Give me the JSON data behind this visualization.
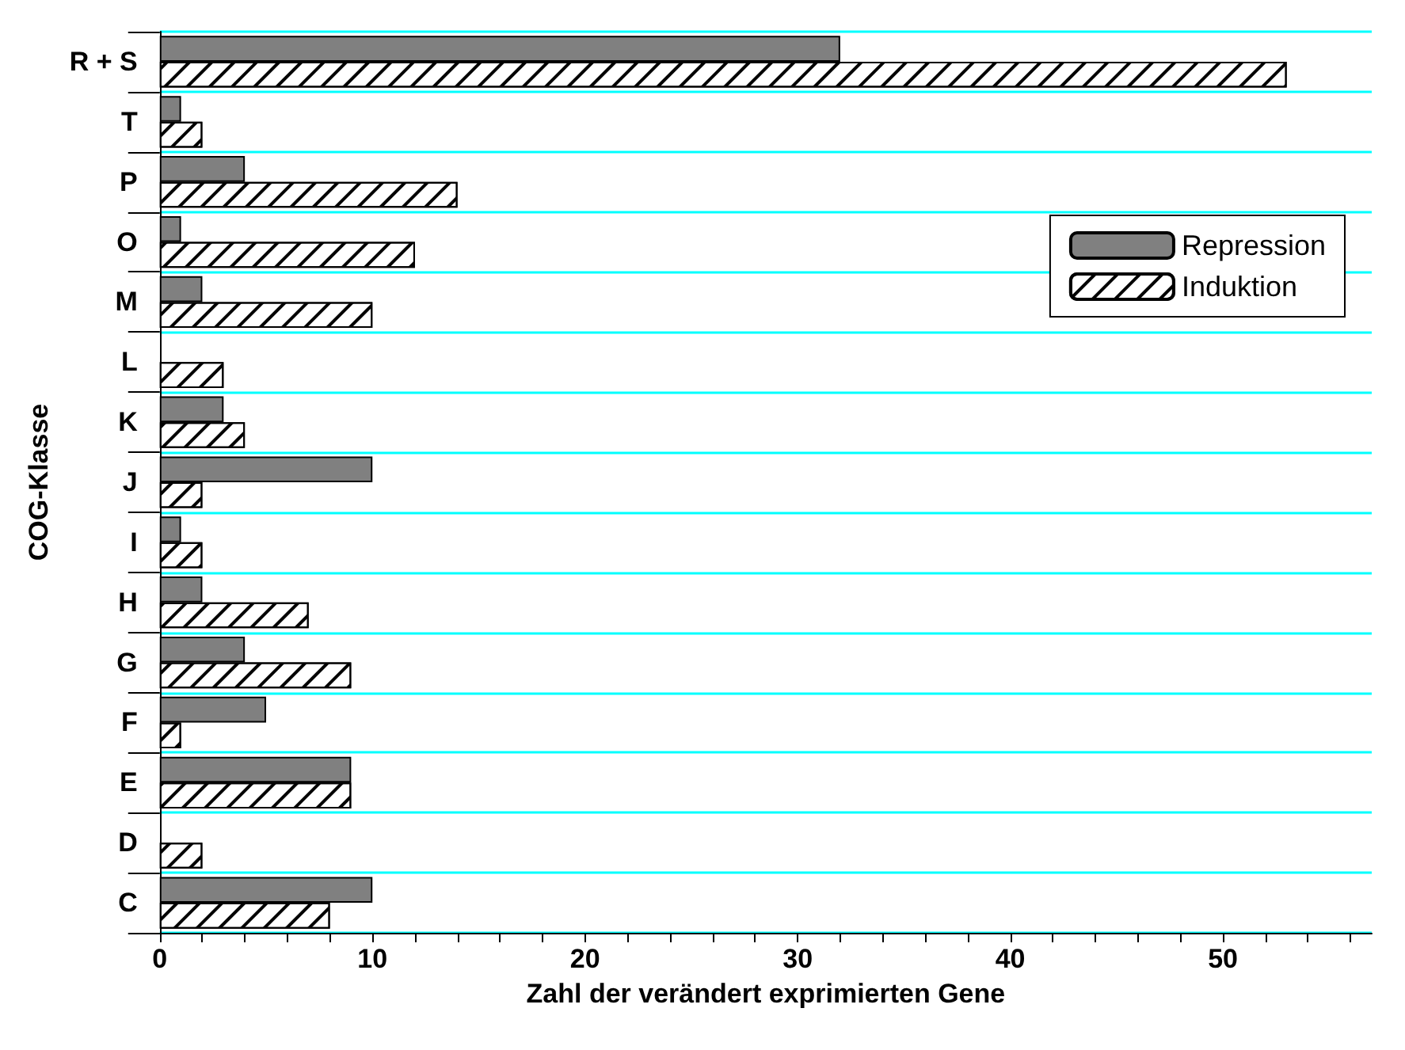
{
  "chart_data": {
    "type": "bar",
    "orientation": "horizontal",
    "xlabel": "Zahl der verändert exprimierten Gene",
    "ylabel": "COG-Klasse",
    "categories": [
      "R + S",
      "T",
      "P",
      "O",
      "M",
      "L",
      "K",
      "J",
      "I",
      "H",
      "G",
      "F",
      "E",
      "D",
      "C"
    ],
    "series": [
      {
        "name": "Repression",
        "color": "#808080",
        "values": [
          32,
          1,
          4,
          1,
          2,
          0,
          3,
          10,
          1,
          2,
          4,
          5,
          9,
          0,
          10
        ]
      },
      {
        "name": "Induktion",
        "color": "#ffffff",
        "values": [
          53,
          2,
          14,
          12,
          10,
          3,
          4,
          2,
          2,
          7,
          9,
          1,
          9,
          2,
          8
        ]
      }
    ],
    "xlim": [
      0,
      57
    ],
    "xticks": [
      0,
      {
        "value": 2,
        "label": null
      },
      {
        "value": 4,
        "label": null
      },
      {
        "value": 6,
        "label": null
      },
      {
        "value": 8,
        "label": null
      },
      10,
      {
        "value": 12,
        "label": null
      },
      {
        "value": 14,
        "label": null
      },
      {
        "value": 16,
        "label": null
      },
      {
        "value": 18,
        "label": null
      },
      20,
      {
        "value": 22,
        "label": null
      },
      {
        "value": 24,
        "label": null
      },
      {
        "value": 26,
        "label": null
      },
      {
        "value": 28,
        "label": null
      },
      30,
      {
        "value": 32,
        "label": null
      },
      {
        "value": 34,
        "label": null
      },
      {
        "value": 36,
        "label": null
      },
      {
        "value": 38,
        "label": null
      },
      40,
      {
        "value": 42,
        "label": null
      },
      {
        "value": 44,
        "label": null
      },
      {
        "value": 46,
        "label": null
      },
      {
        "value": 48,
        "label": null
      },
      50,
      {
        "value": 52,
        "label": null
      },
      {
        "value": 54,
        "label": null
      },
      {
        "value": 56,
        "label": null
      }
    ],
    "grid": "y",
    "legend": "top right"
  }
}
